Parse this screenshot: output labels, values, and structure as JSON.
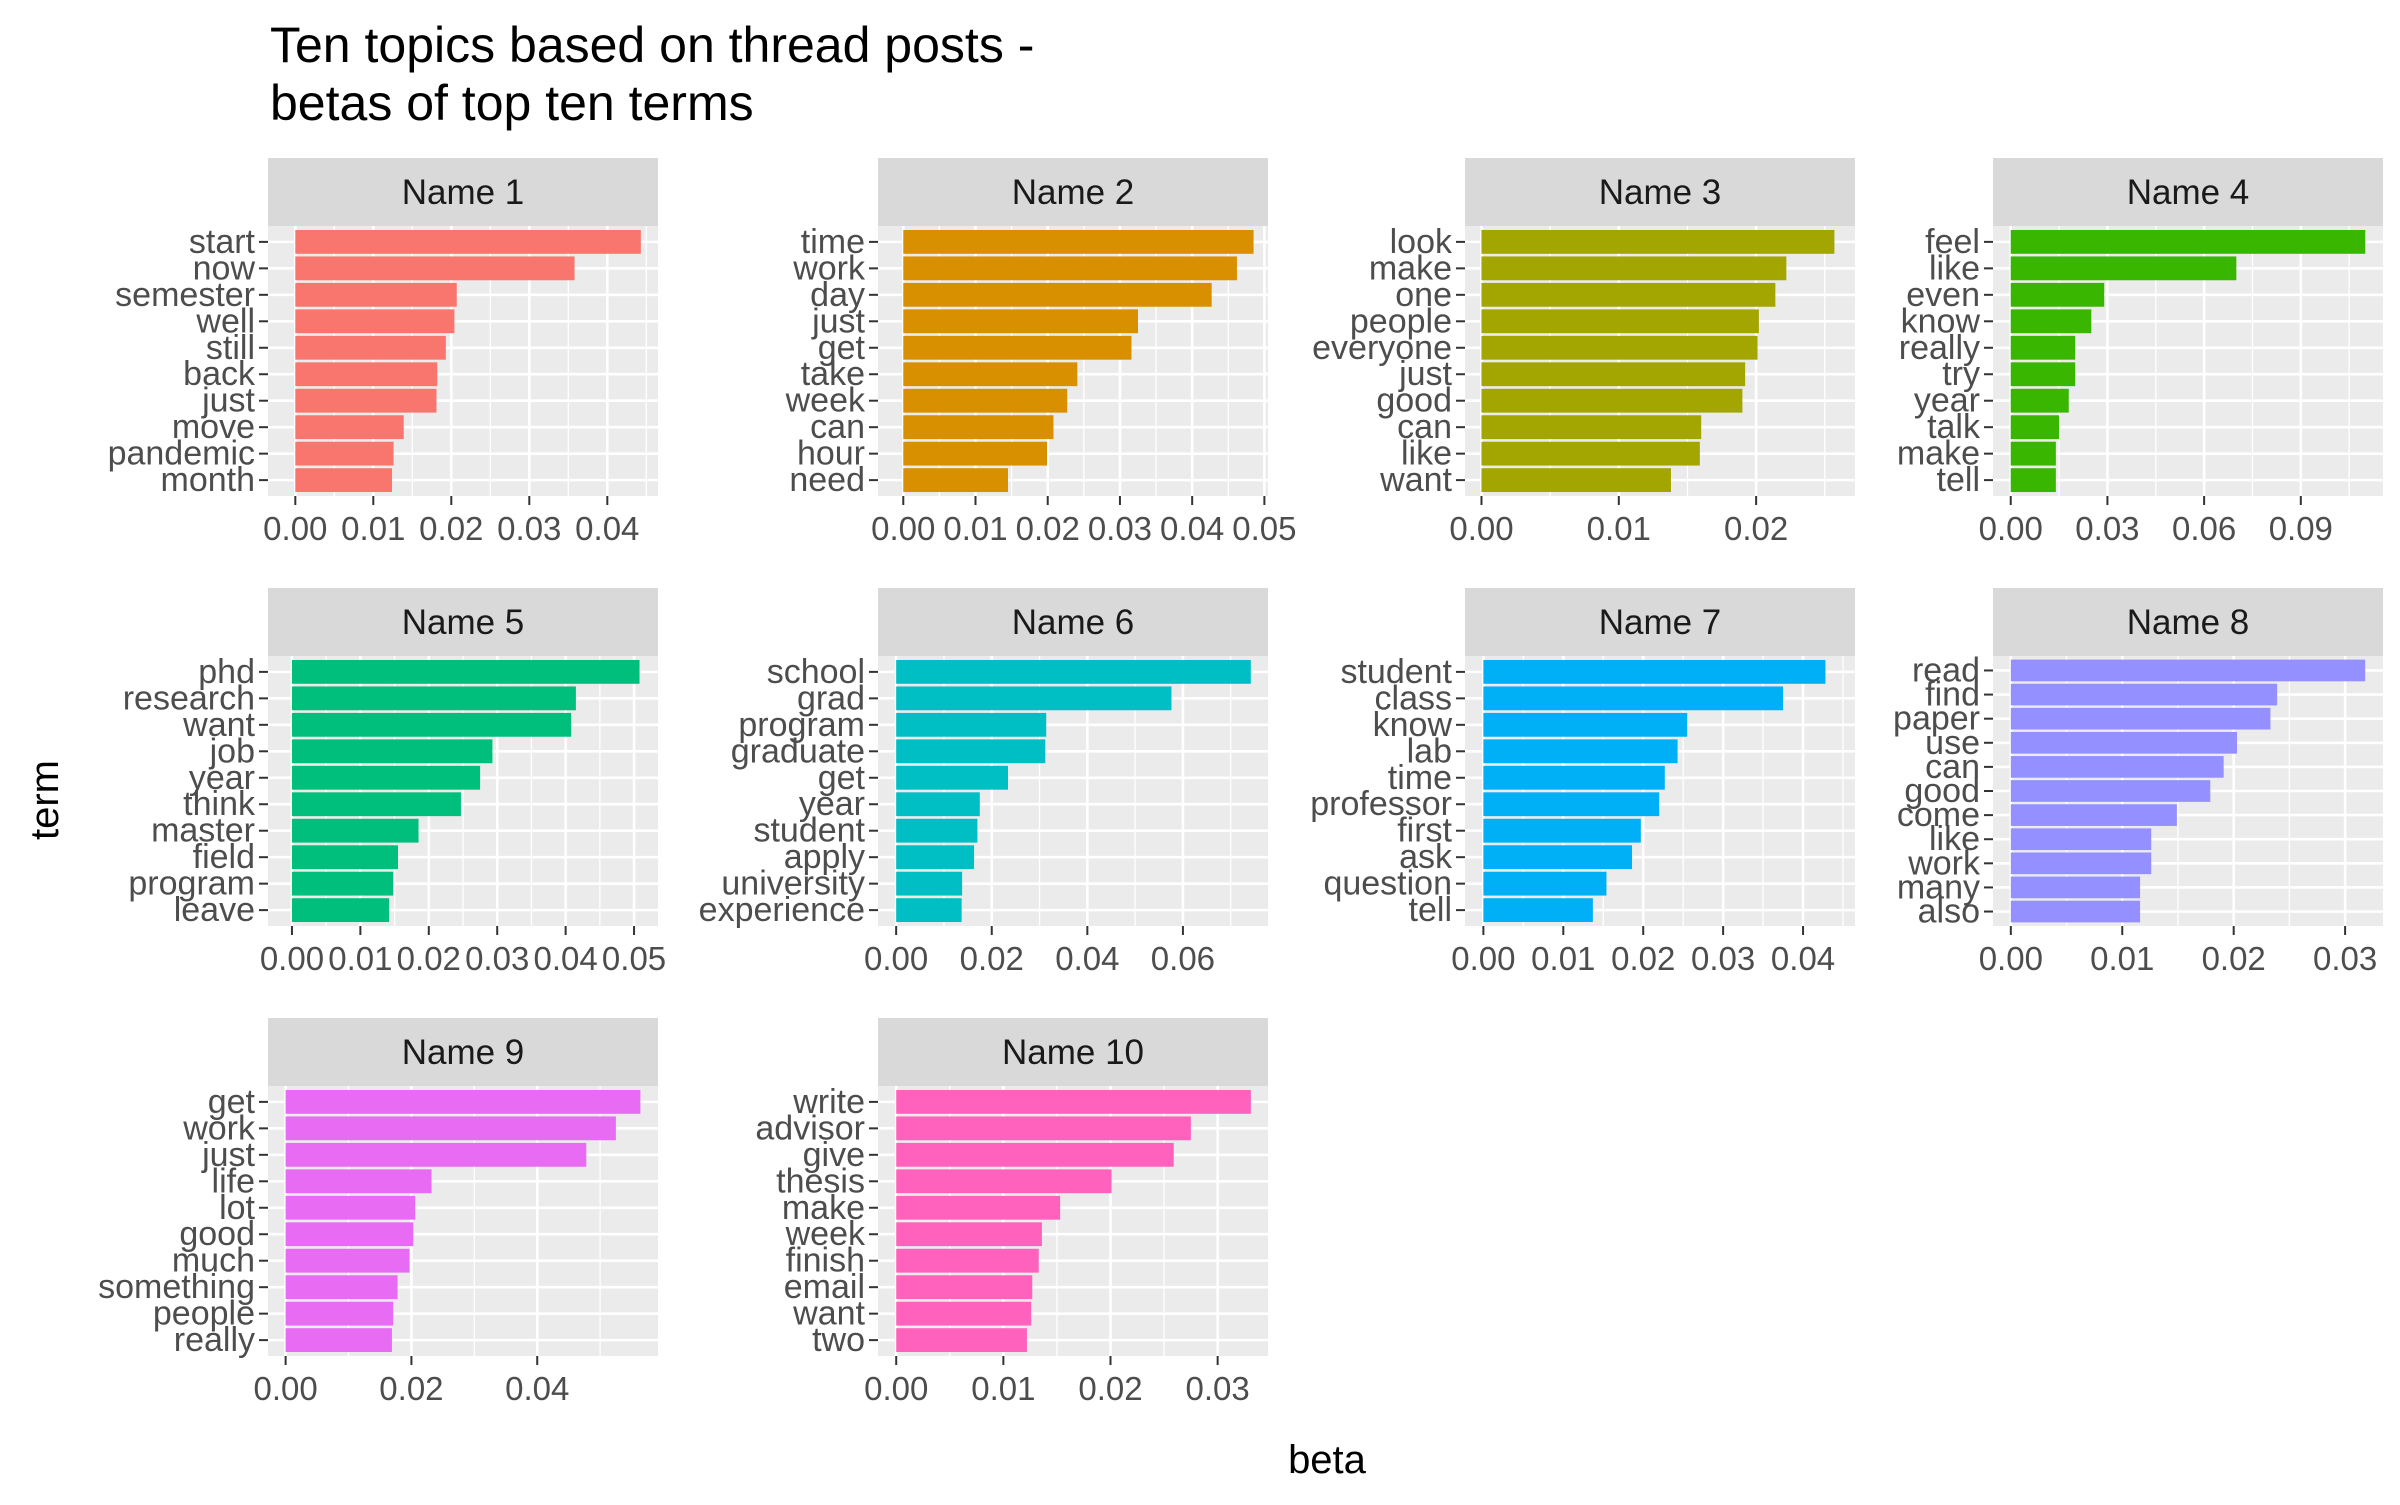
{
  "chart_data": {
    "type": "bar",
    "orientation": "horizontal",
    "title_lines": [
      "Ten topics based on thread posts -",
      "betas of top ten terms"
    ],
    "xlabel": "beta",
    "ylabel": "term",
    "grid": true,
    "legend": "none",
    "panels": [
      {
        "name": "Name 1",
        "color": "#F8766D",
        "xlim": [
          -0.0035,
          0.0465
        ],
        "ticks": [
          0,
          0.01,
          0.02,
          0.03,
          0.04
        ],
        "tick_labels": [
          "0.00",
          "0.01",
          "0.02",
          "0.03",
          "0.04"
        ],
        "terms": [
          "start",
          "now",
          "semester",
          "well",
          "still",
          "back",
          "just",
          "move",
          "pandemic",
          "month"
        ],
        "values": [
          0.0443,
          0.0358,
          0.0207,
          0.0204,
          0.0193,
          0.0182,
          0.0181,
          0.0139,
          0.0126,
          0.0124
        ]
      },
      {
        "name": "Name 2",
        "color": "#D89000",
        "xlim": [
          -0.0035,
          0.0505
        ],
        "ticks": [
          0,
          0.01,
          0.02,
          0.03,
          0.04,
          0.05
        ],
        "tick_labels": [
          "0.00",
          "0.01",
          "0.02",
          "0.03",
          "0.04",
          "0.05"
        ],
        "terms": [
          "time",
          "work",
          "day",
          "just",
          "get",
          "take",
          "week",
          "can",
          "hour",
          "need"
        ],
        "values": [
          0.0485,
          0.0462,
          0.0427,
          0.0325,
          0.0316,
          0.0241,
          0.0227,
          0.0208,
          0.0199,
          0.0145
        ]
      },
      {
        "name": "Name 3",
        "color": "#A3A500",
        "xlim": [
          -0.0012,
          0.0272
        ],
        "ticks": [
          0,
          0.01,
          0.02
        ],
        "tick_labels": [
          "0.00",
          "0.01",
          "0.02"
        ],
        "terms": [
          "look",
          "make",
          "one",
          "people",
          "everyone",
          "just",
          "good",
          "can",
          "like",
          "want"
        ],
        "values": [
          0.0257,
          0.0222,
          0.0214,
          0.0202,
          0.0201,
          0.0192,
          0.019,
          0.016,
          0.0159,
          0.0138
        ]
      },
      {
        "name": "Name 4",
        "color": "#39B600",
        "xlim": [
          -0.0055,
          0.1155
        ],
        "ticks": [
          0,
          0.03,
          0.06,
          0.09
        ],
        "tick_labels": [
          "0.00",
          "0.03",
          "0.06",
          "0.09"
        ],
        "terms": [
          "feel",
          "like",
          "even",
          "know",
          "really",
          "try",
          "year",
          "talk",
          "make",
          "tell"
        ],
        "values": [
          0.11,
          0.07,
          0.029,
          0.025,
          0.02,
          0.02,
          0.018,
          0.015,
          0.014,
          0.014
        ]
      },
      {
        "name": "Name 5",
        "color": "#00BF7D",
        "xlim": [
          -0.0035,
          0.0535
        ],
        "ticks": [
          0,
          0.01,
          0.02,
          0.03,
          0.04,
          0.05
        ],
        "tick_labels": [
          "0.00",
          "0.01",
          "0.02",
          "0.03",
          "0.04",
          "0.05"
        ],
        "terms": [
          "phd",
          "research",
          "want",
          "job",
          "year",
          "think",
          "master",
          "field",
          "program",
          "leave"
        ],
        "values": [
          0.0508,
          0.0415,
          0.0408,
          0.0293,
          0.0275,
          0.0247,
          0.0185,
          0.0155,
          0.0148,
          0.0142
        ]
      },
      {
        "name": "Name 6",
        "color": "#00BFC4",
        "xlim": [
          -0.0038,
          0.0778
        ],
        "ticks": [
          0,
          0.02,
          0.04,
          0.06
        ],
        "tick_labels": [
          "0.00",
          "0.02",
          "0.04",
          "0.06"
        ],
        "terms": [
          "school",
          "grad",
          "program",
          "graduate",
          "get",
          "year",
          "student",
          "apply",
          "university",
          "experience"
        ],
        "values": [
          0.0742,
          0.0576,
          0.0314,
          0.0312,
          0.0234,
          0.0175,
          0.017,
          0.0163,
          0.0138,
          0.0137
        ]
      },
      {
        "name": "Name 7",
        "color": "#00B0F6",
        "xlim": [
          -0.0023,
          0.0465
        ],
        "ticks": [
          0,
          0.01,
          0.02,
          0.03,
          0.04
        ],
        "tick_labels": [
          "0.00",
          "0.01",
          "0.02",
          "0.03",
          "0.04"
        ],
        "terms": [
          "student",
          "class",
          "know",
          "lab",
          "time",
          "professor",
          "first",
          "ask",
          "question",
          "tell"
        ],
        "values": [
          0.0428,
          0.0375,
          0.0255,
          0.0243,
          0.0227,
          0.022,
          0.0197,
          0.0186,
          0.0154,
          0.0137
        ]
      },
      {
        "name": "Name 8",
        "color": "#9590FF",
        "xlim": [
          -0.0016,
          0.0334
        ],
        "ticks": [
          0,
          0.01,
          0.02,
          0.03
        ],
        "tick_labels": [
          "0.00",
          "0.01",
          "0.02",
          "0.03"
        ],
        "terms": [
          "read",
          "find",
          "paper",
          "use",
          "can",
          "good",
          "come",
          "like",
          "work",
          "many",
          "also"
        ],
        "values": [
          0.0318,
          0.0239,
          0.0233,
          0.0203,
          0.0191,
          0.0179,
          0.0149,
          0.0126,
          0.0126,
          0.0116,
          0.0116
        ]
      },
      {
        "name": "Name 9",
        "color": "#E76BF3",
        "xlim": [
          -0.0028,
          0.0592
        ],
        "ticks": [
          0,
          0.02,
          0.04
        ],
        "tick_labels": [
          "0.00",
          "0.02",
          "0.04"
        ],
        "terms": [
          "get",
          "work",
          "just",
          "life",
          "lot",
          "good",
          "much",
          "something",
          "people",
          "really"
        ],
        "values": [
          0.0564,
          0.0525,
          0.0478,
          0.0232,
          0.0206,
          0.0203,
          0.0197,
          0.0178,
          0.0171,
          0.0169
        ]
      },
      {
        "name": "Name 10",
        "color": "#FF62BC",
        "xlim": [
          -0.0017,
          0.0347
        ],
        "ticks": [
          0,
          0.01,
          0.02,
          0.03
        ],
        "tick_labels": [
          "0.00",
          "0.01",
          "0.02",
          "0.03"
        ],
        "terms": [
          "write",
          "advisor",
          "give",
          "thesis",
          "make",
          "week",
          "finish",
          "email",
          "want",
          "two"
        ],
        "values": [
          0.0331,
          0.0275,
          0.0259,
          0.0201,
          0.0153,
          0.0136,
          0.0133,
          0.0127,
          0.0126,
          0.0122
        ]
      }
    ]
  }
}
